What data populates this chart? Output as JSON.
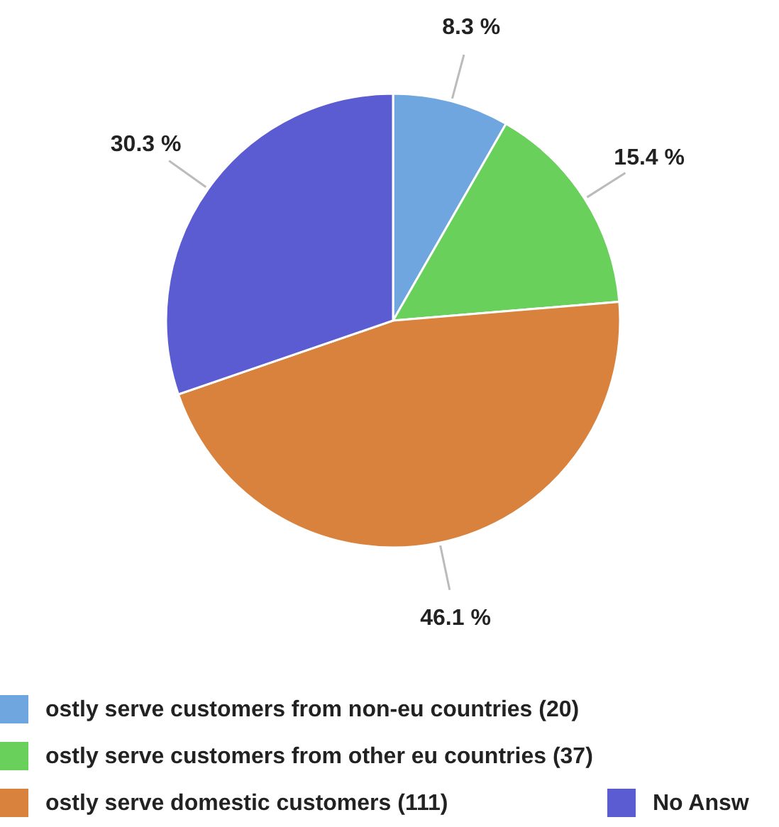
{
  "chart_data": {
    "type": "pie",
    "categories": [
      "ostly serve customers from non-eu countries (20)",
      "ostly serve customers from other eu countries (37)",
      "ostly serve domestic customers (111)",
      "No Answ"
    ],
    "values": [
      8.3,
      15.4,
      46.1,
      30.3
    ],
    "colors": [
      "#6fa6e0",
      "#69d05c",
      "#d9823d",
      "#5b5bd2"
    ],
    "value_labels": [
      "8.3 %",
      "15.4 %",
      "46.1 %",
      "30.3 %"
    ],
    "legend": "bottom"
  }
}
